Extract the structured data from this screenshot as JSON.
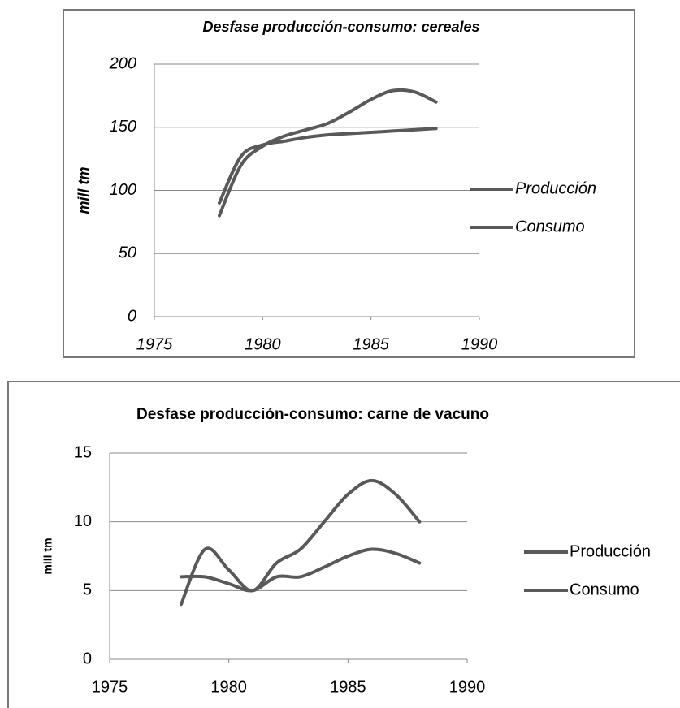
{
  "chart_data": [
    {
      "type": "line",
      "title": "Desfase producción-consumo: cereales",
      "y_label": "mill tm",
      "italic": true,
      "x": [
        1978,
        1979,
        1980,
        1981,
        1982,
        1983,
        1984,
        1985,
        1986,
        1987,
        1988
      ],
      "series": [
        {
          "name": "Producción",
          "color": "#595959",
          "values": [
            80,
            120,
            135,
            143,
            148,
            153,
            162,
            172,
            179,
            178,
            170
          ]
        },
        {
          "name": "Consumo",
          "color": "#595959",
          "values": [
            90,
            127,
            136,
            139,
            142,
            144,
            145,
            146,
            147,
            148,
            149
          ]
        }
      ],
      "xlim": [
        1975,
        1990
      ],
      "xticks": [
        1975,
        1980,
        1985,
        1990
      ],
      "ylim": [
        0,
        200
      ],
      "yticks": [
        0,
        50,
        100,
        150,
        200
      ],
      "grid": true,
      "legend": "right"
    },
    {
      "type": "line",
      "title": "Desfase producción-consumo: carne de vacuno",
      "y_label": "mill tm",
      "italic": false,
      "x": [
        1978,
        1979,
        1980,
        1981,
        1982,
        1983,
        1984,
        1985,
        1986,
        1987,
        1988
      ],
      "series": [
        {
          "name": "Producción",
          "color": "#595959",
          "values": [
            4,
            8,
            6.5,
            5,
            7,
            8,
            10,
            12,
            13,
            12,
            10
          ]
        },
        {
          "name": "Consumo",
          "color": "#595959",
          "values": [
            6,
            6,
            5.5,
            5,
            6,
            6,
            6.7,
            7.5,
            8,
            7.7,
            7
          ]
        }
      ],
      "xlim": [
        1975,
        1990
      ],
      "xticks": [
        1975,
        1980,
        1985,
        1990
      ],
      "ylim": [
        0,
        15
      ],
      "yticks": [
        0,
        5,
        10,
        15
      ],
      "grid": true,
      "legend": "right"
    }
  ]
}
